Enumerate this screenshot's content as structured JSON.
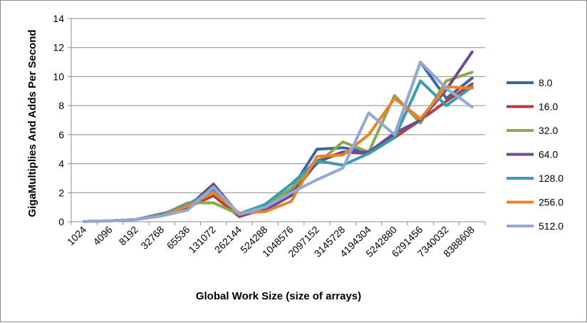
{
  "chart_data": {
    "type": "line",
    "xlabel": "Global Work Size (size of arrays)",
    "ylabel": "GigaMultiplies And Adds Per Second",
    "ylim": [
      0,
      14
    ],
    "yticks": [
      0,
      2,
      4,
      6,
      8,
      10,
      12,
      14
    ],
    "grid": "horizontal",
    "legend_position": "right",
    "categories": [
      "1024",
      "4096",
      "8192",
      "32768",
      "65536",
      "131072",
      "262144",
      "524288",
      "1048576",
      "2097152",
      "3145728",
      "4194304",
      "5242880",
      "6291456",
      "7340032",
      "8388608"
    ],
    "series": [
      {
        "name": "8.0",
        "color": "#3a67a4",
        "values": [
          0.02,
          0.06,
          0.15,
          0.45,
          1.0,
          2.0,
          0.5,
          1.0,
          2.2,
          5.0,
          5.1,
          4.8,
          6.0,
          11.0,
          8.5,
          9.9
        ]
      },
      {
        "name": "16.0",
        "color": "#b2403d",
        "values": [
          0.02,
          0.06,
          0.15,
          0.55,
          1.0,
          1.8,
          0.35,
          0.9,
          1.9,
          4.2,
          4.8,
          4.7,
          5.8,
          7.0,
          8.3,
          9.5
        ]
      },
      {
        "name": "32.0",
        "color": "#8aa94f",
        "values": [
          0.02,
          0.06,
          0.15,
          0.45,
          1.3,
          1.3,
          0.5,
          1.1,
          2.3,
          4.0,
          5.5,
          4.8,
          8.7,
          6.8,
          9.7,
          10.3
        ]
      },
      {
        "name": "64.0",
        "color": "#6c4b91",
        "values": [
          0.02,
          0.06,
          0.15,
          0.5,
          1.0,
          2.6,
          0.45,
          0.8,
          1.8,
          4.1,
          4.8,
          4.8,
          6.1,
          7.0,
          9.1,
          11.7
        ]
      },
      {
        "name": "128.0",
        "color": "#3a9cb2",
        "values": [
          0.02,
          0.06,
          0.15,
          0.5,
          1.2,
          2.2,
          0.55,
          1.2,
          2.6,
          4.2,
          3.9,
          4.7,
          5.8,
          9.7,
          8.0,
          9.3
        ]
      },
      {
        "name": "256.0",
        "color": "#e8822f",
        "values": [
          0.02,
          0.06,
          0.15,
          0.4,
          1.1,
          2.0,
          0.6,
          0.7,
          1.4,
          4.5,
          4.6,
          6.0,
          8.5,
          7.1,
          9.3,
          9.2
        ]
      },
      {
        "name": "512.0",
        "color": "#92a9d3",
        "values": [
          0.02,
          0.06,
          0.15,
          0.4,
          0.8,
          2.4,
          0.5,
          1.0,
          2.0,
          2.9,
          3.7,
          7.5,
          6.0,
          11.0,
          9.2,
          7.9
        ]
      }
    ]
  }
}
